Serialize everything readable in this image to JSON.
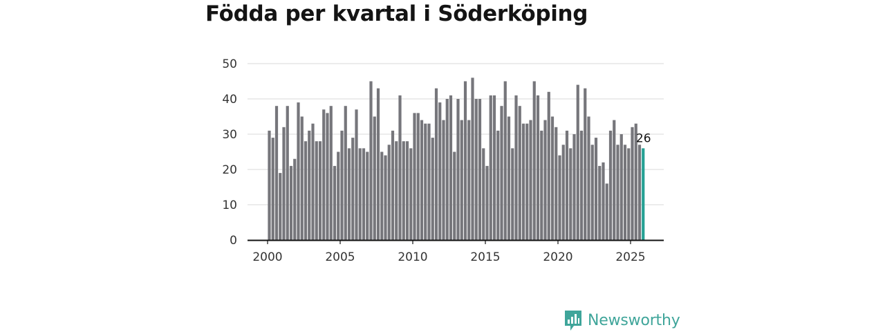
{
  "title": "Födda per kvartal i Söderköping",
  "brand": {
    "name": "Newsworthy",
    "icon": "bar-chart-speech-icon",
    "color": "#3fa59a"
  },
  "chart_data": {
    "type": "bar",
    "title": "Födda per kvartal i Söderköping",
    "xlabel": "",
    "ylabel": "",
    "ylim": [
      0,
      50
    ],
    "yticks": [
      0,
      10,
      20,
      30,
      40,
      50
    ],
    "xticks": [
      "2000",
      "2005",
      "2010",
      "2015",
      "2020",
      "2025"
    ],
    "grid": true,
    "bar_color": "#76767b",
    "highlight_color": "#25a194",
    "highlight_label": "26",
    "categories": [
      "2000 Q1",
      "2000 Q2",
      "2000 Q3",
      "2000 Q4",
      "2001 Q1",
      "2001 Q2",
      "2001 Q3",
      "2001 Q4",
      "2002 Q1",
      "2002 Q2",
      "2002 Q3",
      "2002 Q4",
      "2003 Q1",
      "2003 Q2",
      "2003 Q3",
      "2003 Q4",
      "2004 Q1",
      "2004 Q2",
      "2004 Q3",
      "2004 Q4",
      "2005 Q1",
      "2005 Q2",
      "2005 Q3",
      "2005 Q4",
      "2006 Q1",
      "2006 Q2",
      "2006 Q3",
      "2006 Q4",
      "2007 Q1",
      "2007 Q2",
      "2007 Q3",
      "2007 Q4",
      "2008 Q1",
      "2008 Q2",
      "2008 Q3",
      "2008 Q4",
      "2009 Q1",
      "2009 Q2",
      "2009 Q3",
      "2009 Q4",
      "2010 Q1",
      "2010 Q2",
      "2010 Q3",
      "2010 Q4",
      "2011 Q1",
      "2011 Q2",
      "2011 Q3",
      "2011 Q4",
      "2012 Q1",
      "2012 Q2",
      "2012 Q3",
      "2012 Q4",
      "2013 Q1",
      "2013 Q2",
      "2013 Q3",
      "2013 Q4",
      "2014 Q1",
      "2014 Q2",
      "2014 Q3",
      "2014 Q4",
      "2015 Q1",
      "2015 Q2",
      "2015 Q3",
      "2015 Q4",
      "2016 Q1",
      "2016 Q2",
      "2016 Q3",
      "2016 Q4",
      "2017 Q1",
      "2017 Q2",
      "2017 Q3",
      "2017 Q4",
      "2018 Q1",
      "2018 Q2",
      "2018 Q3",
      "2018 Q4",
      "2019 Q1",
      "2019 Q2",
      "2019 Q3",
      "2019 Q4",
      "2020 Q1",
      "2020 Q2",
      "2020 Q3",
      "2020 Q4",
      "2021 Q1",
      "2021 Q2",
      "2021 Q3",
      "2021 Q4",
      "2022 Q1",
      "2022 Q2",
      "2022 Q3",
      "2022 Q4",
      "2023 Q1",
      "2023 Q2",
      "2023 Q3",
      "2023 Q4",
      "2024 Q1",
      "2024 Q2",
      "2024 Q3",
      "2024 Q4",
      "2025 Q1",
      "2025 Q2",
      "2025 Q3",
      "2025 Q4"
    ],
    "values": [
      31,
      29,
      38,
      19,
      32,
      38,
      21,
      23,
      39,
      35,
      28,
      31,
      33,
      28,
      28,
      37,
      36,
      38,
      21,
      25,
      31,
      38,
      26,
      29,
      37,
      26,
      26,
      25,
      45,
      35,
      43,
      25,
      24,
      27,
      31,
      28,
      41,
      28,
      28,
      26,
      36,
      36,
      34,
      33,
      33,
      29,
      43,
      39,
      34,
      40,
      41,
      25,
      40,
      34,
      45,
      34,
      46,
      40,
      40,
      26,
      21,
      41,
      41,
      31,
      38,
      45,
      35,
      26,
      41,
      38,
      33,
      33,
      34,
      45,
      41,
      31,
      34,
      42,
      35,
      32,
      24,
      27,
      31,
      26,
      30,
      44,
      31,
      43,
      35,
      27,
      29,
      21,
      22,
      16,
      31,
      34,
      27,
      30,
      27,
      26,
      32,
      33,
      27,
      26
    ]
  }
}
